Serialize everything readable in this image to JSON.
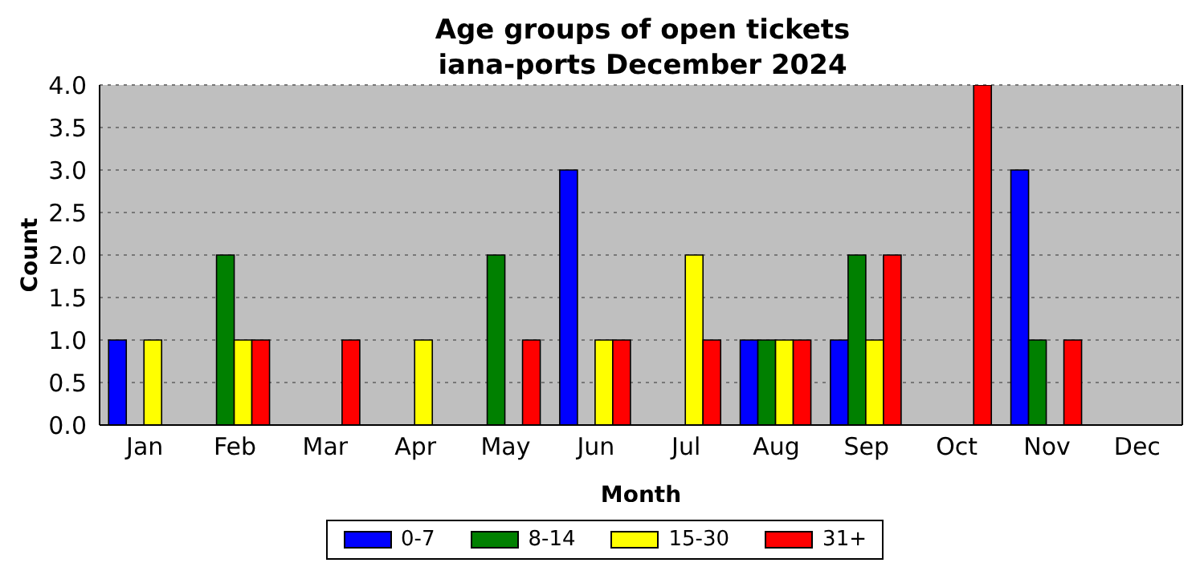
{
  "chart_data": {
    "type": "bar",
    "title": "Age groups of open tickets\niana-ports December 2024",
    "xlabel": "Month",
    "ylabel": "Count",
    "categories": [
      "Jan",
      "Feb",
      "Mar",
      "Apr",
      "May",
      "Jun",
      "Jul",
      "Aug",
      "Sep",
      "Oct",
      "Nov",
      "Dec"
    ],
    "series": [
      {
        "name": "0-7",
        "color": "#0000ff",
        "values": [
          1,
          0,
          0,
          0,
          0,
          3,
          0,
          1,
          1,
          0,
          3,
          0
        ]
      },
      {
        "name": "8-14",
        "color": "#008000",
        "values": [
          0,
          2,
          0,
          0,
          2,
          0,
          0,
          1,
          2,
          0,
          1,
          0
        ]
      },
      {
        "name": "15-30",
        "color": "#ffff00",
        "values": [
          1,
          1,
          0,
          1,
          0,
          1,
          2,
          1,
          1,
          0,
          0,
          0
        ]
      },
      {
        "name": "31+",
        "color": "#ff0000",
        "values": [
          0,
          1,
          1,
          0,
          1,
          1,
          1,
          1,
          2,
          4,
          1,
          0
        ]
      }
    ],
    "ylim": [
      0,
      4
    ],
    "yticks": [
      {
        "value": 0,
        "label": "0.0"
      },
      0.5,
      {
        "value": 1,
        "label": "1.0"
      },
      1.5,
      {
        "value": 2,
        "label": "2.0"
      },
      2.5,
      {
        "value": 3,
        "label": "3.0"
      },
      3.5,
      {
        "value": 4,
        "label": "4.0"
      }
    ],
    "grid": "y",
    "legend": "bottom"
  }
}
